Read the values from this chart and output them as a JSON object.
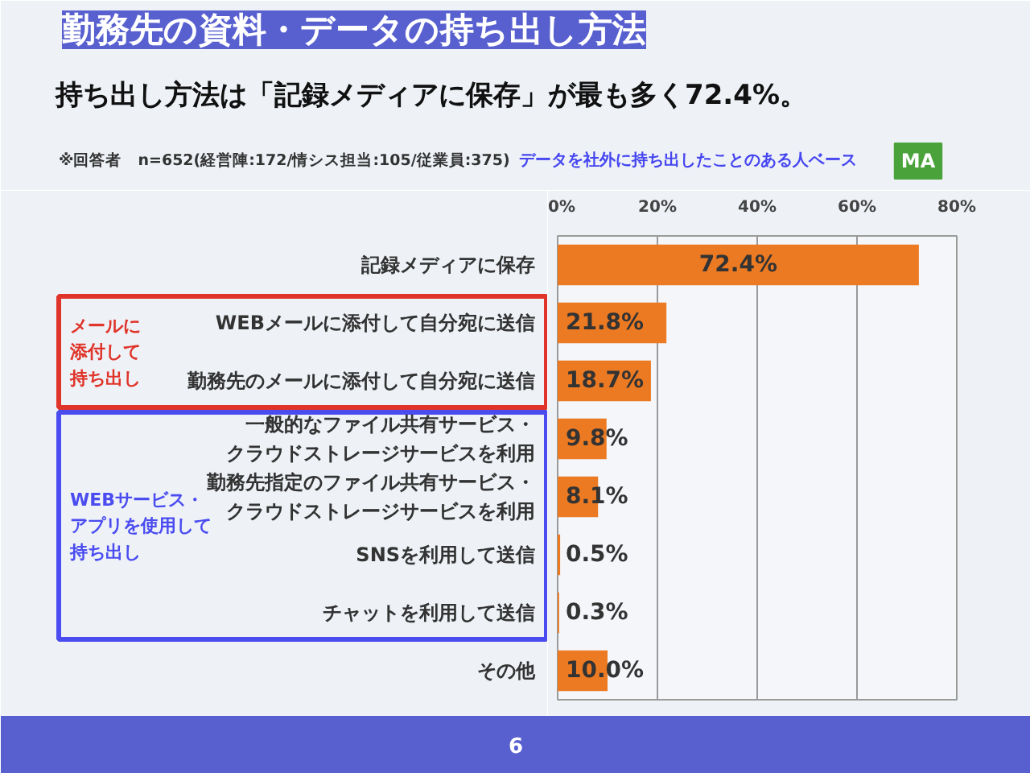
{
  "chart_data": {
    "type": "bar",
    "orientation": "horizontal",
    "title": "勤務先の資料・データの持ち出し方法",
    "subtitle": "持ち出し方法は「記録メディアに保存」が最も多く72.4%。",
    "categories": [
      "記録メディアに保存",
      "WEBメールに添付して自分宛に送信",
      "勤務先のメールに添付して自分宛に送信",
      "一般的なファイル共有サービス・クラウドストレージサービスを利用",
      "勤務先指定のファイル共有サービス・クラウドストレージサービスを利用",
      "SNSを利用して送信",
      "チャットを利用して送信",
      "その他"
    ],
    "values": [
      72.4,
      21.8,
      18.7,
      9.8,
      8.1,
      0.5,
      0.3,
      10.0
    ],
    "color": "#ec7a22",
    "value_labels": [
      "72.4%",
      "21.8%",
      "18.7%",
      "9.8%",
      "8.1%",
      "0.5%",
      "0.3%",
      "10.0%"
    ],
    "xlim": [
      0,
      80
    ],
    "xticks": [
      {
        "value": 0,
        "label": "0%"
      },
      {
        "value": 20,
        "label": "20%"
      },
      {
        "value": 40,
        "label": "40%"
      },
      {
        "value": 60,
        "label": "60%"
      },
      {
        "value": 80,
        "label": "80%"
      }
    ],
    "grid": "x",
    "annotations": [
      "※回答者　n=652(経営陣:172/情シス担当:105/従業員:375)",
      "データを社外に持ち出したことのある人ベース",
      "MA",
      "メールに添付して持ち出し",
      "WEBサービス・アプリを使用して持ち出し",
      "6"
    ]
  }
}
